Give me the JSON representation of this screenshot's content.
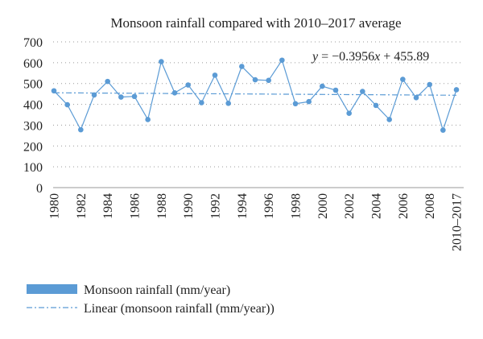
{
  "chart_data": {
    "type": "line",
    "title": "Monsoon rainfall compared with 2010–2017 average",
    "xlabel": "",
    "ylabel": "",
    "categories": [
      "1980",
      "1981",
      "1982",
      "1983",
      "1984",
      "1985",
      "1986",
      "1987",
      "1988",
      "1989",
      "1990",
      "1991",
      "1992",
      "1993",
      "1994",
      "1995",
      "1996",
      "1997",
      "1998",
      "1999",
      "2000",
      "2001",
      "2002",
      "2003",
      "2004",
      "2005",
      "2006",
      "2007",
      "2008",
      "2009",
      "2010–2017"
    ],
    "x_tick_labels": [
      "1980",
      "1982",
      "1984",
      "1986",
      "1988",
      "1990",
      "1992",
      "1994",
      "1996",
      "1998",
      "2000",
      "2002",
      "2004",
      "2006",
      "2008",
      "2010–2017"
    ],
    "ylim": [
      0,
      700
    ],
    "yticks": [
      0,
      100,
      200,
      300,
      400,
      500,
      600,
      700
    ],
    "grid": "dotted-horizontal",
    "series": [
      {
        "name": "Monsoon rainfall (mm/year)",
        "color": "#5b9bd5",
        "values": [
          465,
          398,
          278,
          445,
          510,
          435,
          438,
          327,
          605,
          455,
          493,
          408,
          540,
          405,
          582,
          518,
          515,
          612,
          403,
          413,
          487,
          468,
          357,
          462,
          395,
          327,
          520,
          432,
          495,
          276,
          470
        ]
      }
    ],
    "trendline": {
      "name": "Linear (monsoon rainfall (mm/year))",
      "slope": -0.3956,
      "intercept": 455.89,
      "color": "#5b9bd5",
      "equation": "y = −0.3956x + 455.89"
    },
    "legend_position": "bottom-left"
  }
}
